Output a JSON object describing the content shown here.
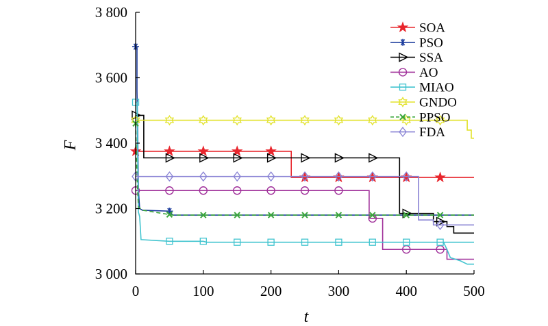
{
  "chart_data": {
    "type": "line",
    "title": "",
    "xlabel": "t",
    "ylabel": "F",
    "xlim": [
      0,
      500
    ],
    "ylim": [
      3000,
      3800
    ],
    "x_ticks": [
      0,
      100,
      200,
      300,
      400,
      500
    ],
    "y_ticks": [
      3000,
      3200,
      3400,
      3600,
      3800
    ],
    "x_tick_labels": [
      "0",
      "100",
      "200",
      "300",
      "400",
      "500"
    ],
    "y_tick_labels": [
      "3 000",
      "3 200",
      "3 400",
      "3 600",
      "3 800"
    ],
    "grid": false,
    "legend_position": "top-right",
    "series": [
      {
        "name": "SOA",
        "color": "#e8262d",
        "marker": "star",
        "points": [
          [
            0,
            3375
          ],
          [
            230,
            3375
          ],
          [
            230,
            3295
          ],
          [
            500,
            3295
          ]
        ],
        "marker_x": [
          0,
          50,
          100,
          150,
          200,
          250,
          300,
          350,
          400,
          450
        ]
      },
      {
        "name": "PSO",
        "color": "#1f3f9e",
        "marker": "asterisk",
        "points": [
          [
            0,
            3695
          ],
          [
            2,
            3695
          ],
          [
            2,
            3560
          ],
          [
            3,
            3440
          ],
          [
            4,
            3260
          ],
          [
            6,
            3200
          ],
          [
            10,
            3195
          ],
          [
            50,
            3192
          ],
          [
            55,
            3180
          ],
          [
            500,
            3180
          ]
        ],
        "marker_x": [
          0,
          50
        ]
      },
      {
        "name": "SSA",
        "color": "#000000",
        "marker": "triangle-right",
        "points": [
          [
            0,
            3485
          ],
          [
            12,
            3485
          ],
          [
            12,
            3355
          ],
          [
            390,
            3355
          ],
          [
            390,
            3185
          ],
          [
            440,
            3185
          ],
          [
            440,
            3160
          ],
          [
            460,
            3160
          ],
          [
            460,
            3145
          ],
          [
            470,
            3145
          ],
          [
            470,
            3125
          ],
          [
            500,
            3125
          ]
        ],
        "marker_x": [
          0,
          50,
          100,
          150,
          200,
          250,
          300,
          350,
          400,
          450
        ]
      },
      {
        "name": "AO",
        "color": "#a0309a",
        "marker": "circle",
        "points": [
          [
            0,
            3255
          ],
          [
            345,
            3255
          ],
          [
            345,
            3170
          ],
          [
            365,
            3170
          ],
          [
            365,
            3075
          ],
          [
            460,
            3075
          ],
          [
            460,
            3045
          ],
          [
            500,
            3045
          ]
        ],
        "marker_x": [
          0,
          50,
          100,
          150,
          200,
          250,
          300,
          350,
          400,
          450
        ]
      },
      {
        "name": "MIAO",
        "color": "#41c4cf",
        "marker": "square",
        "points": [
          [
            0,
            3525
          ],
          [
            2,
            3525
          ],
          [
            4,
            3190
          ],
          [
            6,
            3175
          ],
          [
            8,
            3105
          ],
          [
            50,
            3100
          ],
          [
            100,
            3100
          ],
          [
            105,
            3097
          ],
          [
            500,
            3097
          ],
          [
            455,
            3097
          ],
          [
            460,
            3075
          ],
          [
            465,
            3050
          ],
          [
            480,
            3040
          ],
          [
            490,
            3030
          ],
          [
            500,
            3030
          ]
        ],
        "marker_x": [
          0,
          50,
          100,
          150,
          200,
          250,
          300,
          350,
          400,
          450
        ]
      },
      {
        "name": "GNDO",
        "color": "#e2e22a",
        "marker": "hexagram",
        "points": [
          [
            0,
            3470
          ],
          [
            490,
            3470
          ],
          [
            490,
            3440
          ],
          [
            496,
            3440
          ],
          [
            496,
            3415
          ],
          [
            500,
            3415
          ]
        ],
        "marker_x": [
          0,
          50,
          100,
          150,
          200,
          250,
          300,
          350,
          400,
          450
        ]
      },
      {
        "name": "PPSO",
        "color": "#3aa63a",
        "marker": "x",
        "dashed": true,
        "points": [
          [
            0,
            3460
          ],
          [
            2,
            3300
          ],
          [
            4,
            3205
          ],
          [
            10,
            3195
          ],
          [
            40,
            3185
          ],
          [
            55,
            3180
          ],
          [
            500,
            3180
          ]
        ],
        "marker_x": [
          0,
          50,
          100,
          150,
          200,
          250,
          300,
          350,
          400,
          450
        ]
      },
      {
        "name": "FDA",
        "color": "#8882d4",
        "marker": "diamond",
        "points": [
          [
            0,
            3298
          ],
          [
            418,
            3298
          ],
          [
            418,
            3165
          ],
          [
            440,
            3165
          ],
          [
            440,
            3150
          ],
          [
            500,
            3150
          ]
        ],
        "marker_x": [
          0,
          50,
          100,
          150,
          200,
          250,
          300,
          350,
          400,
          450
        ]
      }
    ]
  }
}
